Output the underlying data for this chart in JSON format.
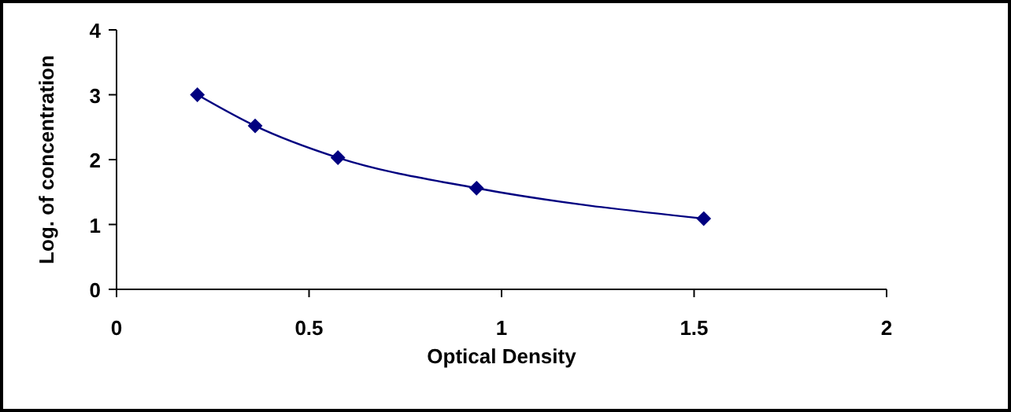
{
  "chart_data": {
    "type": "line",
    "xlabel": "Optical Density",
    "ylabel": "Log. of concentration",
    "x": [
      0.21,
      0.36,
      0.575,
      0.935,
      1.525
    ],
    "series": [
      {
        "color": "#000080",
        "values": [
          3.0,
          2.52,
          2.03,
          1.56,
          1.09
        ]
      }
    ],
    "xlim": [
      0,
      2
    ],
    "xticks": [
      0,
      0.5,
      1,
      1.5,
      2
    ],
    "ylim": [
      0,
      4
    ],
    "yticks": [
      0,
      1,
      2,
      3,
      4
    ],
    "marker": "diamond",
    "line_style": "solid",
    "grid": false
  }
}
